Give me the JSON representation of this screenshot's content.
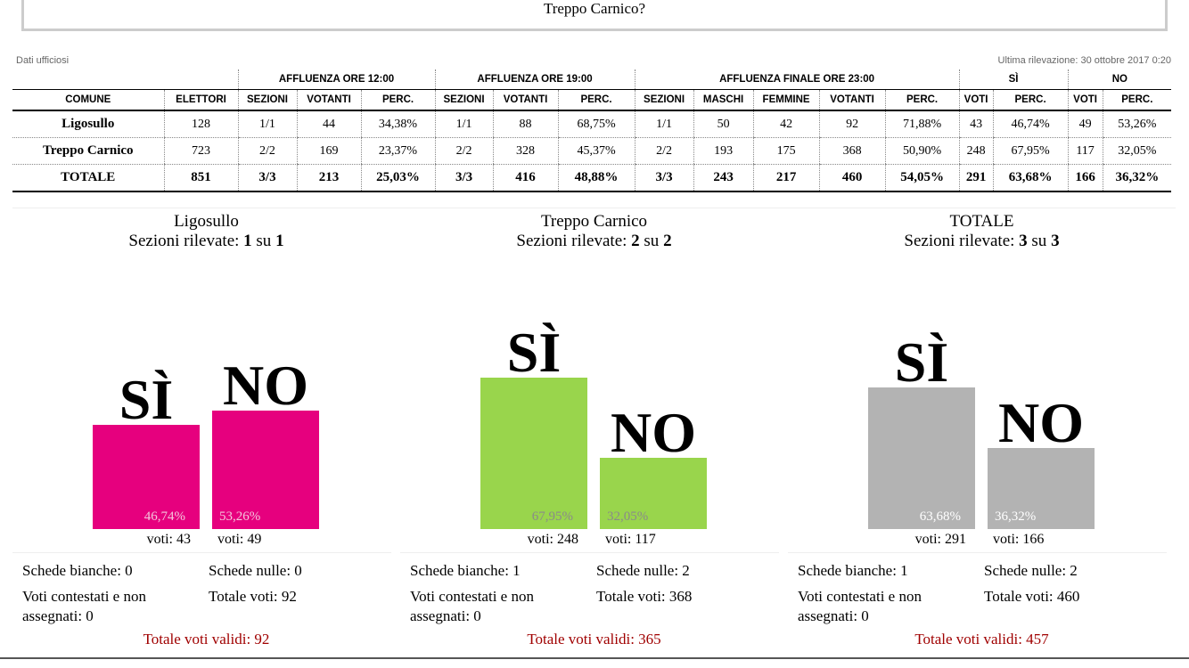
{
  "header": {
    "question_end": "Treppo Carnico?"
  },
  "meta": {
    "left": "Dati ufficiosi",
    "right": "Ultima rilevazione: 30 ottobre 2017 0:20"
  },
  "table": {
    "groups": [
      "AFFLUENZA ORE 12:00",
      "AFFLUENZA ORE 19:00",
      "AFFLUENZA FINALE ORE 23:00",
      "SÌ",
      "NO"
    ],
    "columns": [
      "COMUNE",
      "ELETTORI",
      "SEZIONI",
      "VOTANTI",
      "PERC.",
      "SEZIONI",
      "VOTANTI",
      "PERC.",
      "SEZIONI",
      "MASCHI",
      "FEMMINE",
      "VOTANTI",
      "PERC.",
      "VOTI",
      "PERC.",
      "VOTI",
      "PERC."
    ],
    "rows": [
      [
        "Ligosullo",
        "128",
        "1/1",
        "44",
        "34,38%",
        "1/1",
        "88",
        "68,75%",
        "1/1",
        "50",
        "42",
        "92",
        "71,88%",
        "43",
        "46,74%",
        "49",
        "53,26%"
      ],
      [
        "Treppo Carnico",
        "723",
        "2/2",
        "169",
        "23,37%",
        "2/2",
        "328",
        "45,37%",
        "2/2",
        "193",
        "175",
        "368",
        "50,90%",
        "248",
        "67,95%",
        "117",
        "32,05%"
      ],
      [
        "TOTALE",
        "851",
        "3/3",
        "213",
        "25,03%",
        "3/3",
        "416",
        "48,88%",
        "3/3",
        "243",
        "217",
        "460",
        "54,05%",
        "291",
        "63,68%",
        "166",
        "36,32%"
      ]
    ]
  },
  "chart_data": [
    {
      "type": "bar",
      "title": "Ligosullo",
      "subtitle": [
        "Sezioni rilevate:",
        "1",
        "su",
        "1"
      ],
      "categories": [
        "SÌ",
        "NO"
      ],
      "values": [
        46.74,
        53.26
      ],
      "value_labels": [
        "46,74%",
        "53,26%"
      ],
      "vote_labels": [
        "voti: 43",
        "voti: 49"
      ],
      "color": "#e6007e",
      "label_color": "#f4c6dd",
      "annotations": [
        "Schede bianche: 0",
        "Schede nulle: 0",
        "Voti contestati e non assegnati: 0",
        "Totale voti: 92"
      ],
      "footer": "Totale voti validi: 92"
    },
    {
      "type": "bar",
      "title": "Treppo Carnico",
      "subtitle": [
        "Sezioni rilevate:",
        "2",
        "su",
        "2"
      ],
      "categories": [
        "SÌ",
        "NO"
      ],
      "values": [
        67.95,
        32.05
      ],
      "value_labels": [
        "67,95%",
        "32,05%"
      ],
      "vote_labels": [
        "voti: 248",
        "voti: 117"
      ],
      "color": "#99d54c",
      "label_color": "#8a8a8a",
      "annotations": [
        "Schede bianche: 1",
        "Schede nulle: 2",
        "Voti contestati e non assegnati: 0",
        "Totale voti: 368"
      ],
      "footer": "Totale voti validi: 365"
    },
    {
      "type": "bar",
      "title": "TOTALE",
      "subtitle": [
        "Sezioni rilevate:",
        "3",
        "su",
        "3"
      ],
      "categories": [
        "SÌ",
        "NO"
      ],
      "values": [
        63.68,
        36.32
      ],
      "value_labels": [
        "63,68%",
        "36,32%"
      ],
      "vote_labels": [
        "voti: 291",
        "voti: 166"
      ],
      "color": "#b3b3b3",
      "label_color": "#ffffff",
      "annotations": [
        "Schede bianche: 1",
        "Schede nulle: 2",
        "Voti contestati e non assegnati: 0",
        "Totale voti: 460"
      ],
      "footer": "Totale voti validi: 457"
    }
  ]
}
